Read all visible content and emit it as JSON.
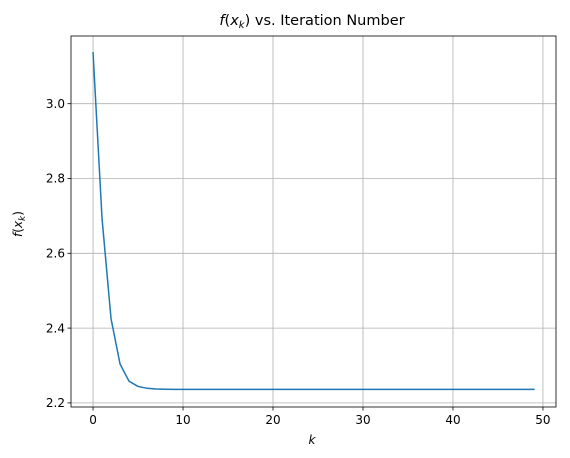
{
  "chart_data": {
    "type": "line",
    "title": {
      "func": "f",
      "arg": "x",
      "sub": "k",
      "rest": " vs. Iteration Number"
    },
    "xlabel": "k",
    "ylabel": {
      "func": "f",
      "arg": "x",
      "sub": "k"
    },
    "xlim": [
      -2.45,
      51.45
    ],
    "ylim": [
      2.189,
      3.181
    ],
    "xticks": [
      0,
      10,
      20,
      30,
      40,
      50
    ],
    "xtick_labels": [
      "0",
      "10",
      "20",
      "30",
      "40",
      "50"
    ],
    "yticks": [
      2.2,
      2.4,
      2.6,
      2.8,
      3.0
    ],
    "ytick_labels": [
      "2.2",
      "2.4",
      "2.6",
      "2.8",
      "3.0"
    ],
    "grid": true,
    "colors": {
      "line": "#1f77b4",
      "grid": "#b0b0b0"
    },
    "series": [
      {
        "x": [
          0,
          1,
          2,
          3,
          4,
          5,
          6,
          7,
          8,
          9,
          10,
          11,
          12,
          13,
          14,
          15,
          16,
          17,
          18,
          19,
          20,
          21,
          22,
          23,
          24,
          25,
          26,
          27,
          28,
          29,
          30,
          31,
          32,
          33,
          34,
          35,
          36,
          37,
          38,
          39,
          40,
          41,
          42,
          43,
          44,
          45,
          46,
          47,
          48,
          49
        ],
        "values": [
          3.136,
          2.693,
          2.425,
          2.304,
          2.258,
          2.244,
          2.239,
          2.237,
          2.2365,
          2.236,
          2.236,
          2.236,
          2.236,
          2.236,
          2.236,
          2.236,
          2.236,
          2.236,
          2.236,
          2.236,
          2.236,
          2.236,
          2.236,
          2.236,
          2.236,
          2.236,
          2.236,
          2.236,
          2.236,
          2.236,
          2.236,
          2.236,
          2.236,
          2.236,
          2.236,
          2.236,
          2.236,
          2.236,
          2.236,
          2.236,
          2.236,
          2.236,
          2.236,
          2.236,
          2.236,
          2.236,
          2.236,
          2.236,
          2.236,
          2.236
        ]
      }
    ]
  }
}
